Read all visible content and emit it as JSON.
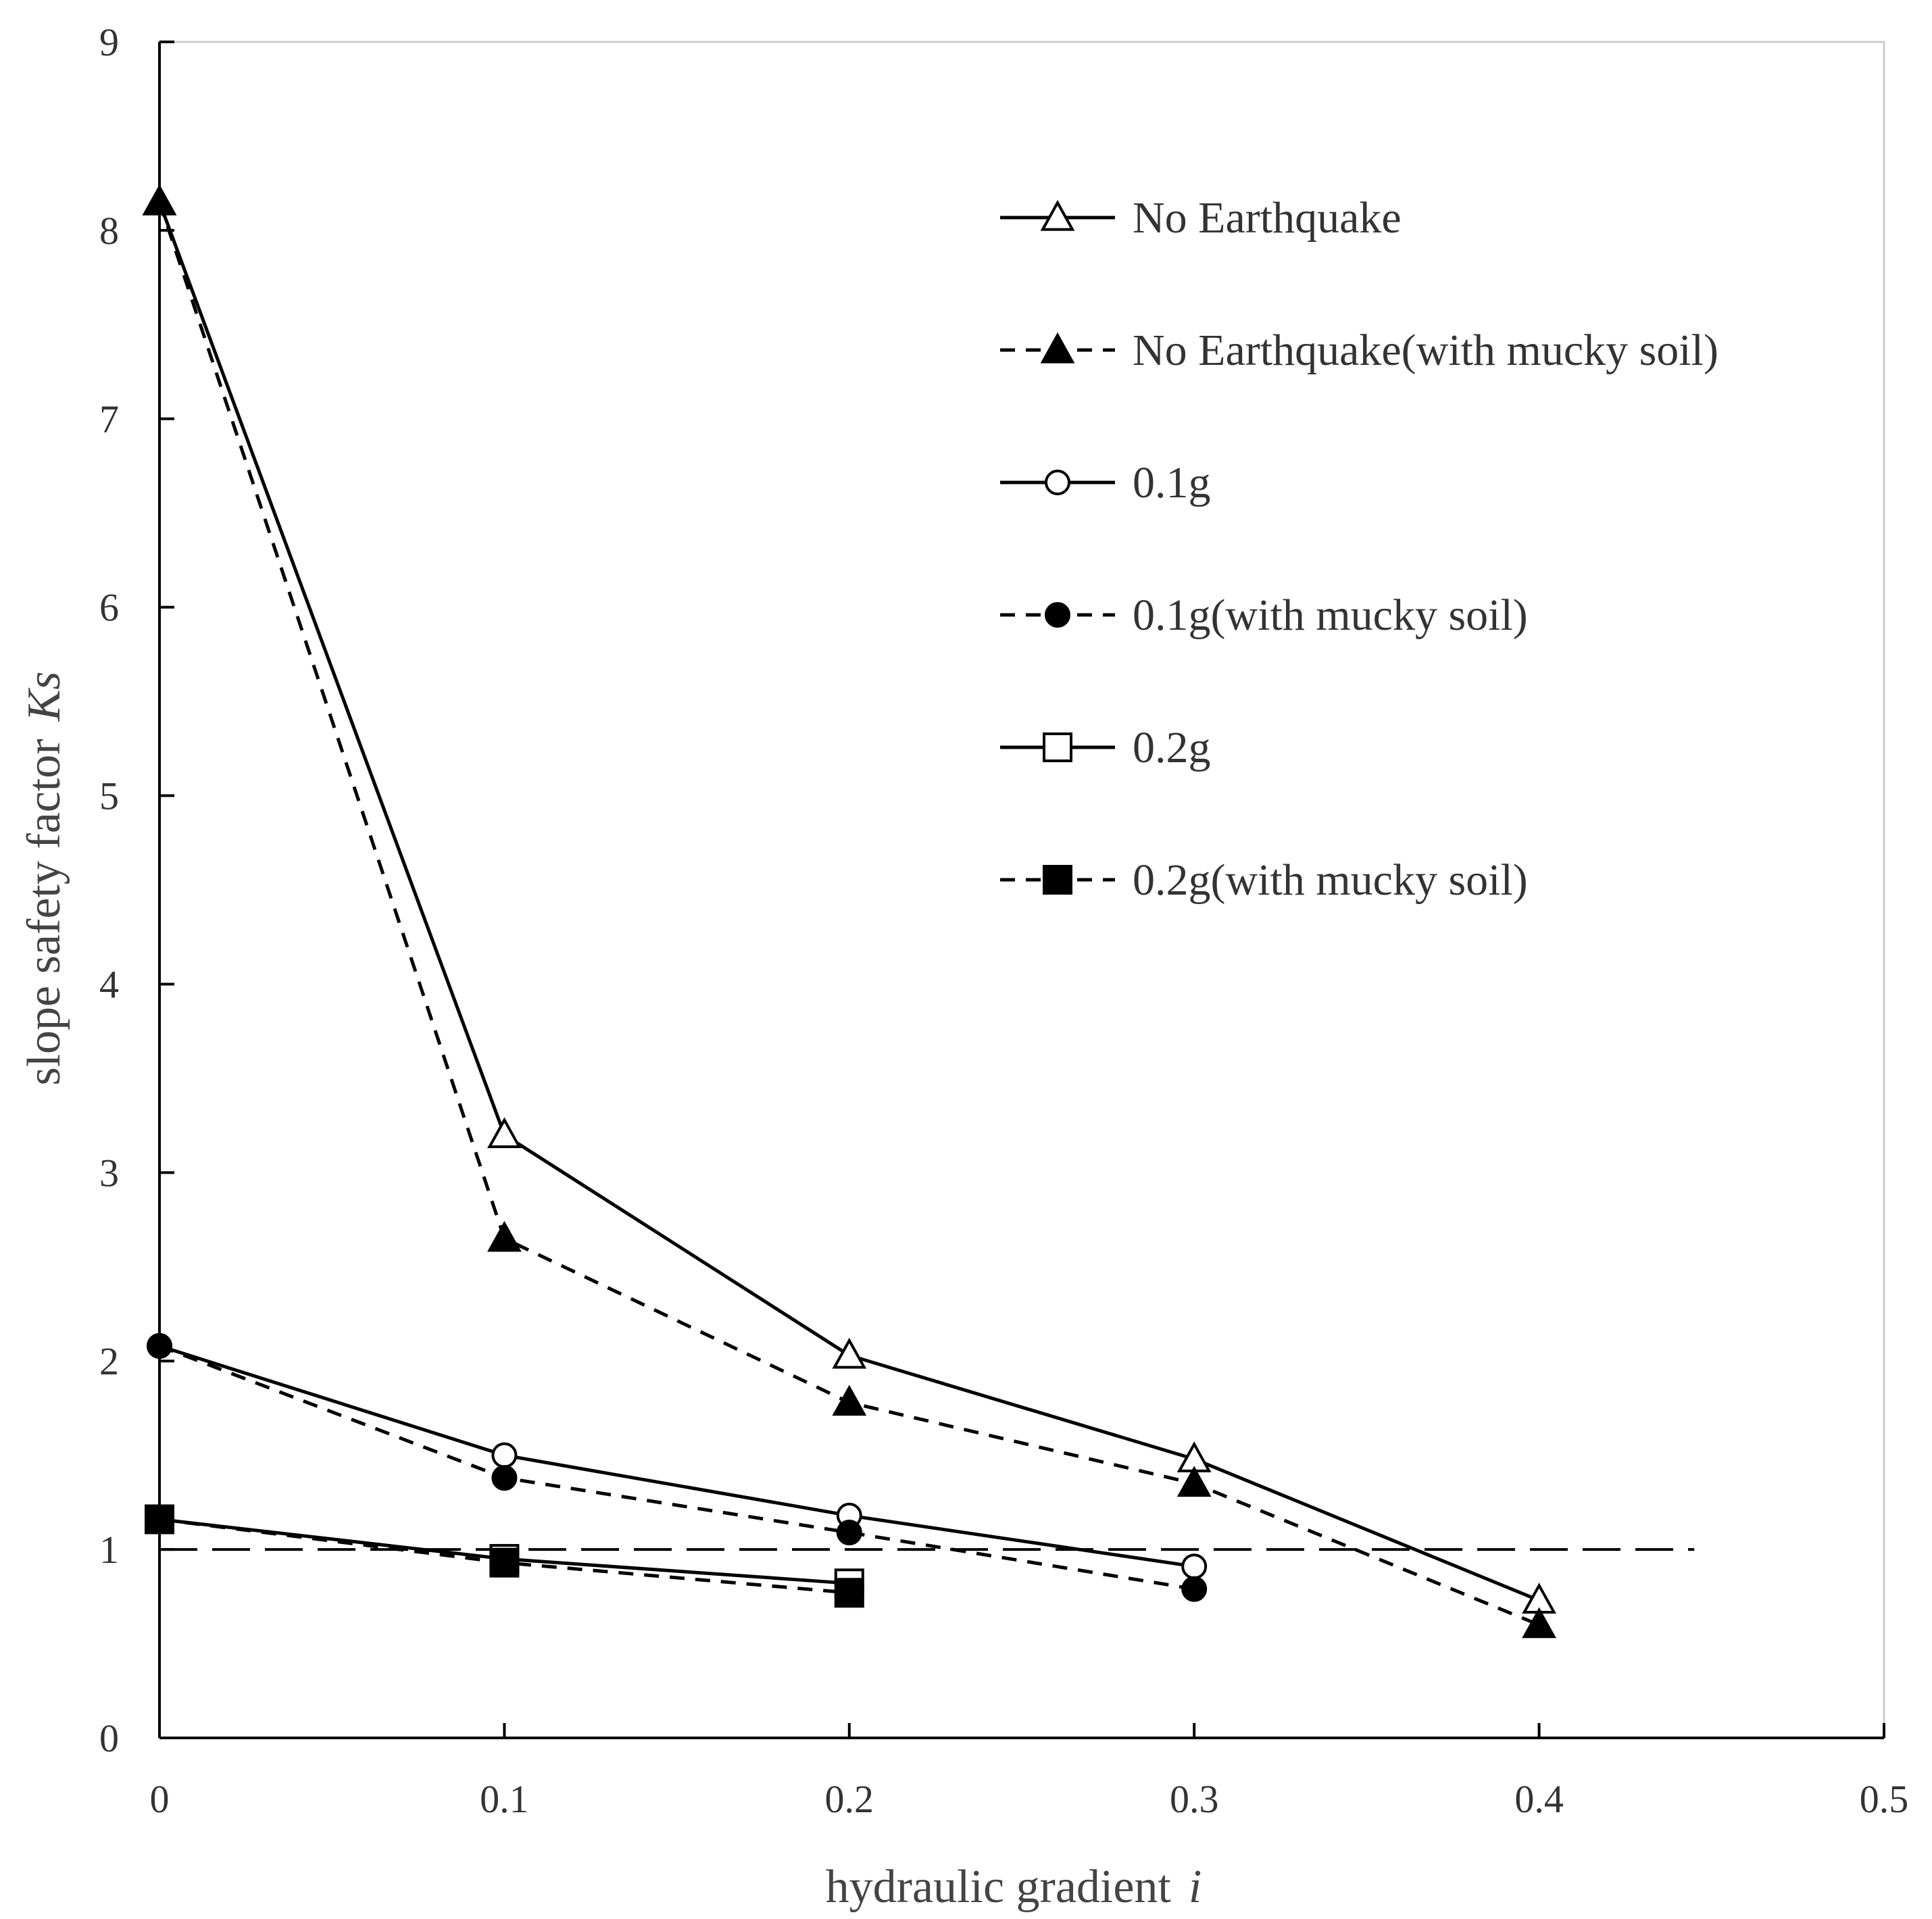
{
  "chart_data": {
    "type": "line",
    "title": "",
    "xlabel": "hydraulic gradient",
    "xlabel_symbol": "i",
    "ylabel": "slope safety factor",
    "ylabel_symbol": "Ks",
    "xlim": [
      0,
      0.5
    ],
    "ylim": [
      0,
      9
    ],
    "x_ticks": [
      "0",
      "0.1",
      "0.2",
      "0.3",
      "0.4",
      "0.5"
    ],
    "y_ticks": [
      "0",
      "1",
      "2",
      "3",
      "4",
      "5",
      "6",
      "7",
      "8",
      "9"
    ],
    "grid": false,
    "legend_position": "top-right",
    "reference_line": {
      "y": 1.0,
      "x_range": [
        0,
        0.445
      ],
      "style": "long-dash"
    },
    "series": [
      {
        "name": "No Earthquake",
        "line": "solid",
        "marker": "triangle-open",
        "x": [
          0,
          0.1,
          0.2,
          0.3,
          0.4
        ],
        "values": [
          8.15,
          3.2,
          2.03,
          1.48,
          0.73
        ]
      },
      {
        "name": "No Earthquake(with mucky soil)",
        "line": "dashed",
        "marker": "triangle-filled",
        "x": [
          0,
          0.1,
          0.2,
          0.3,
          0.4
        ],
        "values": [
          8.15,
          2.65,
          1.78,
          1.35,
          0.6
        ]
      },
      {
        "name": "0.1g",
        "line": "solid",
        "marker": "circle-open",
        "x": [
          0,
          0.1,
          0.2,
          0.3
        ],
        "values": [
          2.08,
          1.5,
          1.18,
          0.91
        ]
      },
      {
        "name": "0.1g(with mucky soil)",
        "line": "dashed",
        "marker": "circle-filled",
        "x": [
          0,
          0.1,
          0.2,
          0.3
        ],
        "values": [
          2.08,
          1.38,
          1.09,
          0.79
        ]
      },
      {
        "name": "0.2g",
        "line": "solid",
        "marker": "square-open",
        "x": [
          0,
          0.1,
          0.2
        ],
        "values": [
          1.16,
          0.95,
          0.82
        ]
      },
      {
        "name": "0.2g(with mucky soil)",
        "line": "dashed",
        "marker": "square-filled",
        "x": [
          0,
          0.1,
          0.2
        ],
        "values": [
          1.16,
          0.93,
          0.77
        ]
      }
    ]
  }
}
